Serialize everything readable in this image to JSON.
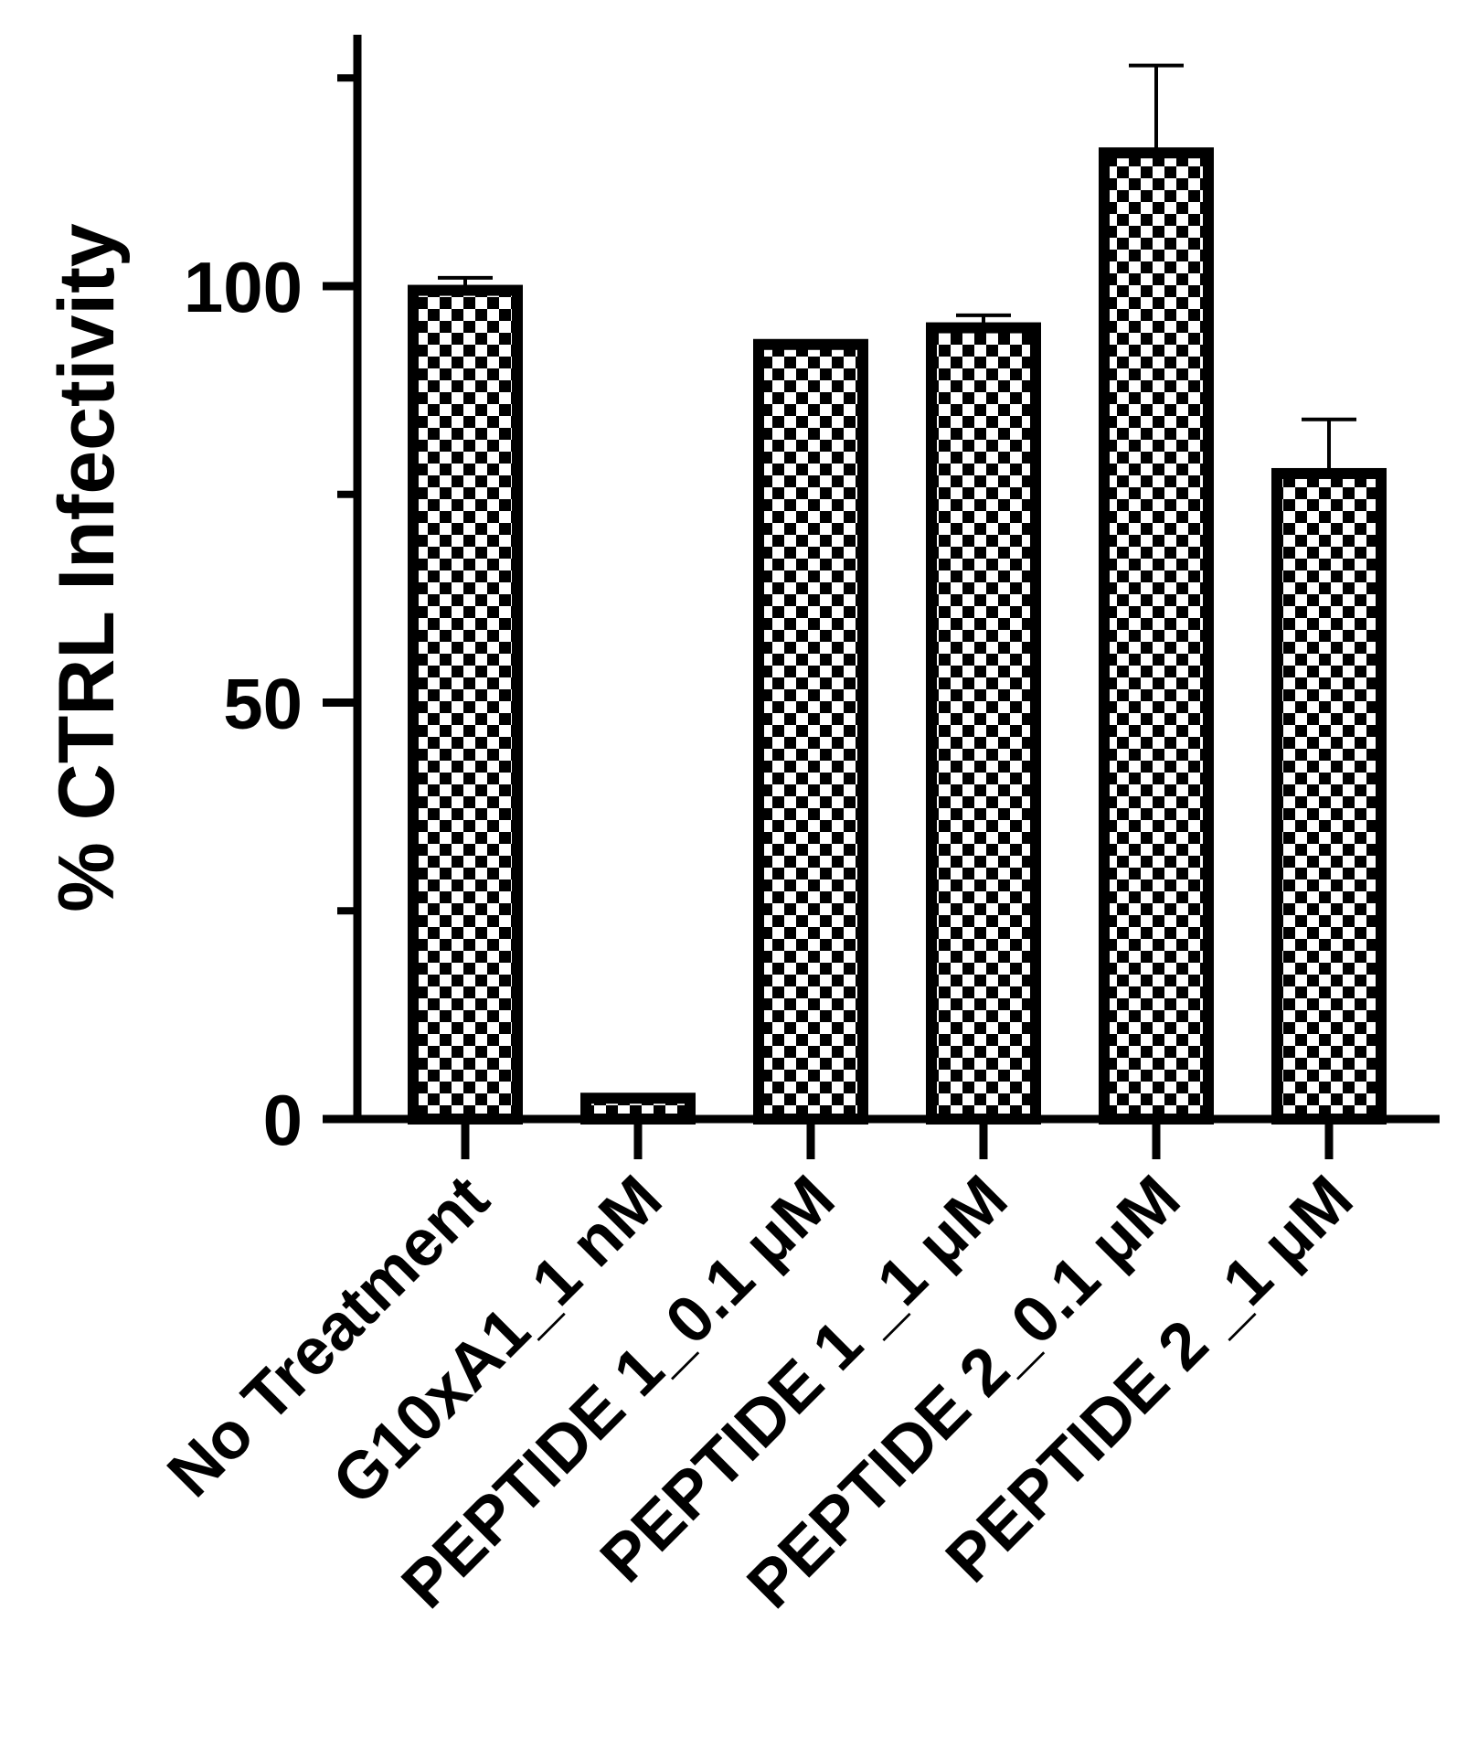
{
  "chart_data": {
    "type": "bar",
    "title": "",
    "xlabel": "",
    "ylabel": "% CTRL Infectivity",
    "ylim": [
      0,
      125
    ],
    "yticks_major": [
      0,
      50,
      100
    ],
    "yticks_minor": [
      25,
      75,
      125
    ],
    "grid": false,
    "bar_fill": "checkerboard",
    "categories": [
      "No Treatment",
      "G10xA1_1 nM",
      "PEPTIDE 1_0.1 μM",
      "PEPTIDE 1 _1 μM",
      "PEPTIDE 2_0.1 μM",
      "PEPTIDE 2 _1 μM"
    ],
    "values": [
      99.5,
      2.5,
      93,
      95,
      116,
      77.5
    ],
    "errors": [
      1.5,
      0.4,
      0.3,
      1.5,
      10.5,
      6.5
    ],
    "colors": {
      "bar_stroke": "#000000",
      "bar_checker": "#000000",
      "background": "#ffffff"
    }
  }
}
